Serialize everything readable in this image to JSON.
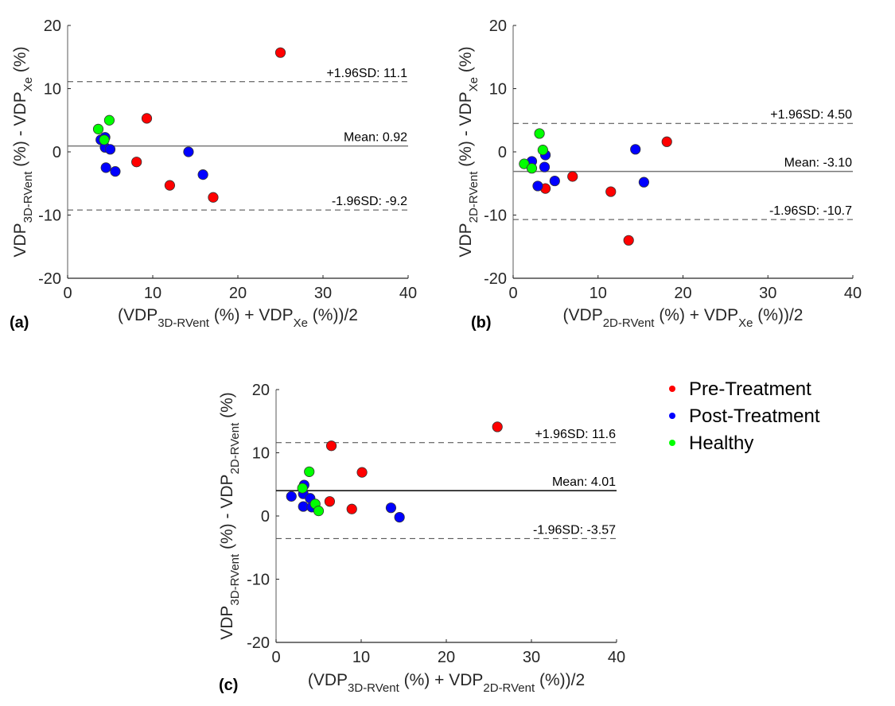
{
  "legend": {
    "placement": "right of panel (c)",
    "entries": [
      {
        "label": "Pre-Treatment",
        "color": "#ff0000"
      },
      {
        "label": "Post-Treatment",
        "color": "#0000ff"
      },
      {
        "label": "Healthy",
        "color": "#00ff00"
      }
    ]
  },
  "chart_data": [
    {
      "type": "scatter",
      "panel_label": "(a)",
      "title": "",
      "ylabel": {
        "main": "VDP",
        "sub1": "3D-RVent",
        "mid": " (%) - VDP",
        "sub2": "Xe",
        "end": " (%)"
      },
      "xlabel": {
        "main": "(VDP",
        "sub1": "3D-RVent",
        "mid": " (%) + VDP",
        "sub2": "Xe",
        "end": " (%))/2"
      },
      "xlim": [
        0,
        40
      ],
      "ylim": [
        -20,
        20
      ],
      "xticks": [
        0,
        10,
        20,
        30,
        40
      ],
      "yticks": [
        20,
        10,
        0,
        -10,
        -20
      ],
      "grid": false,
      "lines": {
        "mean": {
          "value": 0.92,
          "label": "Mean: 0.92"
        },
        "upper": {
          "value": 11.1,
          "label": "+1.96SD: 11.1"
        },
        "lower": {
          "value": -9.2,
          "label": "-1.96SD: -9.2"
        }
      },
      "series": [
        {
          "name": "Pre-Treatment",
          "color": "#ff0000",
          "points": [
            [
              25.0,
              15.7
            ],
            [
              9.3,
              5.3
            ],
            [
              8.1,
              -1.6
            ],
            [
              12.0,
              -5.3
            ],
            [
              17.1,
              -7.2
            ]
          ]
        },
        {
          "name": "Post-Treatment",
          "color": "#0000ff",
          "points": [
            [
              14.2,
              0.0
            ],
            [
              15.9,
              -3.6
            ],
            [
              4.5,
              -2.5
            ],
            [
              5.6,
              -3.1
            ],
            [
              3.9,
              1.9
            ],
            [
              4.4,
              2.3
            ],
            [
              4.4,
              0.7
            ],
            [
              5.0,
              0.4
            ]
          ]
        },
        {
          "name": "Healthy",
          "color": "#00ff00",
          "points": [
            [
              3.6,
              3.6
            ],
            [
              4.9,
              5.0
            ],
            [
              4.3,
              1.9
            ]
          ]
        }
      ]
    },
    {
      "type": "scatter",
      "panel_label": "(b)",
      "title": "",
      "ylabel": {
        "main": "VDP",
        "sub1": "2D-RVent",
        "mid": " (%) - VDP",
        "sub2": "Xe",
        "end": " (%)"
      },
      "xlabel": {
        "main": "(VDP",
        "sub1": "2D-RVent",
        "mid": " (%) + VDP",
        "sub2": "Xe",
        "end": " (%))/2"
      },
      "xlim": [
        0,
        40
      ],
      "ylim": [
        -20,
        20
      ],
      "xticks": [
        0,
        10,
        20,
        30,
        40
      ],
      "yticks": [
        20,
        10,
        0,
        -10,
        -20
      ],
      "grid": false,
      "lines": {
        "mean": {
          "value": -3.1,
          "label": "Mean: -3.10"
        },
        "upper": {
          "value": 4.5,
          "label": "+1.96SD: 4.50"
        },
        "lower": {
          "value": -10.7,
          "label": "-1.96SD: -10.7"
        }
      },
      "series": [
        {
          "name": "Pre-Treatment",
          "color": "#ff0000",
          "points": [
            [
              18.1,
              1.6
            ],
            [
              13.6,
              -14.0
            ],
            [
              11.5,
              -6.3
            ],
            [
              7.0,
              -3.9
            ],
            [
              3.8,
              -5.8
            ]
          ]
        },
        {
          "name": "Post-Treatment",
          "color": "#0000ff",
          "points": [
            [
              14.4,
              0.4
            ],
            [
              15.4,
              -4.8
            ],
            [
              4.9,
              -4.6
            ],
            [
              2.9,
              -5.4
            ],
            [
              3.7,
              -2.4
            ],
            [
              3.8,
              -0.5
            ],
            [
              2.2,
              -1.5
            ]
          ]
        },
        {
          "name": "Healthy",
          "color": "#00ff00",
          "points": [
            [
              3.1,
              2.9
            ],
            [
              3.5,
              0.3
            ],
            [
              1.3,
              -1.9
            ],
            [
              2.2,
              -2.6
            ]
          ]
        }
      ]
    },
    {
      "type": "scatter",
      "panel_label": "(c)",
      "title": "",
      "ylabel": {
        "main": "VDP",
        "sub1": "3D-RVent",
        "mid": " (%) - VDP",
        "sub2": "2D-RVent",
        "end": " (%)"
      },
      "xlabel": {
        "main": "(VDP",
        "sub1": "3D-RVent",
        "mid": " (%) + VDP",
        "sub2": "2D-RVent",
        "end": " (%))/2"
      },
      "xlim": [
        0,
        40
      ],
      "ylim": [
        -20,
        20
      ],
      "xticks": [
        0,
        10,
        20,
        30,
        40
      ],
      "yticks": [
        20,
        10,
        0,
        -10,
        -20
      ],
      "grid": false,
      "lines": {
        "mean": {
          "value": 4.01,
          "label": "Mean: 4.01"
        },
        "upper": {
          "value": 11.6,
          "label": "+1.96SD: 11.6"
        },
        "lower": {
          "value": -3.57,
          "label": "-1.96SD: -3.57"
        }
      },
      "series": [
        {
          "name": "Pre-Treatment",
          "color": "#ff0000",
          "points": [
            [
              26.0,
              14.1
            ],
            [
              6.5,
              11.1
            ],
            [
              10.1,
              6.9
            ],
            [
              6.3,
              2.3
            ],
            [
              8.9,
              1.1
            ]
          ]
        },
        {
          "name": "Post-Treatment",
          "color": "#0000ff",
          "points": [
            [
              13.5,
              1.3
            ],
            [
              14.5,
              -0.2
            ],
            [
              1.8,
              3.1
            ],
            [
              3.3,
              4.9
            ],
            [
              3.2,
              3.5
            ],
            [
              4.0,
              2.8
            ],
            [
              3.2,
              1.5
            ],
            [
              4.2,
              1.4
            ]
          ]
        },
        {
          "name": "Healthy",
          "color": "#00ff00",
          "points": [
            [
              3.9,
              7.0
            ],
            [
              3.1,
              4.4
            ],
            [
              4.6,
              1.9
            ],
            [
              5.0,
              0.8
            ]
          ]
        }
      ]
    }
  ]
}
